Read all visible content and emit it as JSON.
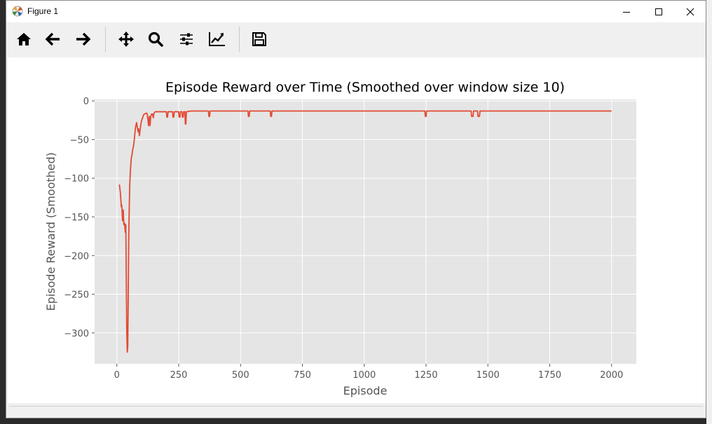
{
  "window": {
    "title": "Figure 1",
    "controls": {
      "minimize": "minimize-icon",
      "maximize": "maximize-icon",
      "close": "close-icon"
    }
  },
  "toolbar": {
    "items": [
      {
        "name": "home-button",
        "icon": "home-icon"
      },
      {
        "name": "back-button",
        "icon": "arrow-left-icon"
      },
      {
        "name": "forward-button",
        "icon": "arrow-right-icon"
      },
      {
        "name": "pan-button",
        "icon": "move-icon"
      },
      {
        "name": "zoom-button",
        "icon": "magnifier-icon"
      },
      {
        "name": "subplots-button",
        "icon": "sliders-icon"
      },
      {
        "name": "customize-button",
        "icon": "chart-line-icon"
      },
      {
        "name": "save-button",
        "icon": "floppy-disk-icon"
      }
    ]
  },
  "chart_data": {
    "type": "line",
    "title": "Episode Reward over Time (Smoothed over window size 10)",
    "xlabel": "Episode",
    "ylabel": "Episode Reward (Smoothed)",
    "xlim": [
      -90,
      2100
    ],
    "ylim": [
      -340,
      2
    ],
    "xticks": [
      0,
      250,
      500,
      750,
      1000,
      1250,
      1500,
      1750,
      2000
    ],
    "xtick_labels": [
      "0",
      "250",
      "500",
      "750",
      "1000",
      "1250",
      "1500",
      "1750",
      "2000"
    ],
    "yticks": [
      0,
      -50,
      -100,
      -150,
      -200,
      -250,
      -300
    ],
    "ytick_labels": [
      "0",
      "−50",
      "−100",
      "−150",
      "−200",
      "−250",
      "−300"
    ],
    "grid": true,
    "style": "ggplot",
    "background": "#e5e5e5",
    "line_color": "#e24a33",
    "series": [
      {
        "points": [
          [
            10,
            -108
          ],
          [
            14,
            -118
          ],
          [
            18,
            -137
          ],
          [
            20,
            -135
          ],
          [
            23,
            -155
          ],
          [
            26,
            -141
          ],
          [
            28,
            -160
          ],
          [
            31,
            -158
          ],
          [
            34,
            -170
          ],
          [
            36,
            -160
          ],
          [
            38,
            -230
          ],
          [
            40,
            -300
          ],
          [
            42,
            -325
          ],
          [
            44,
            -318
          ],
          [
            46,
            -250
          ],
          [
            48,
            -180
          ],
          [
            50,
            -140
          ],
          [
            52,
            -110
          ],
          [
            54,
            -95
          ],
          [
            56,
            -85
          ],
          [
            58,
            -75
          ],
          [
            61,
            -70
          ],
          [
            63,
            -65
          ],
          [
            66,
            -60
          ],
          [
            69,
            -55
          ],
          [
            72,
            -45
          ],
          [
            75,
            -35
          ],
          [
            78,
            -30
          ],
          [
            80,
            -28
          ],
          [
            83,
            -35
          ],
          [
            86,
            -40
          ],
          [
            88,
            -36
          ],
          [
            91,
            -45
          ],
          [
            94,
            -38
          ],
          [
            97,
            -30
          ],
          [
            100,
            -25
          ],
          [
            104,
            -22
          ],
          [
            108,
            -18
          ],
          [
            112,
            -17
          ],
          [
            117,
            -16
          ],
          [
            122,
            -16
          ],
          [
            126,
            -25
          ],
          [
            128,
            -32
          ],
          [
            131,
            -20
          ],
          [
            134,
            -32
          ],
          [
            137,
            -20
          ],
          [
            140,
            -17
          ],
          [
            144,
            -17
          ],
          [
            147,
            -22
          ],
          [
            150,
            -16
          ],
          [
            155,
            -14
          ],
          [
            165,
            -14
          ],
          [
            175,
            -14
          ],
          [
            195,
            -14
          ],
          [
            200,
            -14
          ],
          [
            202,
            -21
          ],
          [
            205,
            -21
          ],
          [
            207,
            -14
          ],
          [
            225,
            -14
          ],
          [
            227,
            -21
          ],
          [
            230,
            -21
          ],
          [
            232,
            -14
          ],
          [
            250,
            -14
          ],
          [
            252,
            -21
          ],
          [
            255,
            -21
          ],
          [
            257,
            -14
          ],
          [
            263,
            -14
          ],
          [
            265,
            -21
          ],
          [
            268,
            -21
          ],
          [
            270,
            -14
          ],
          [
            275,
            -14
          ],
          [
            277,
            -30
          ],
          [
            279,
            -30
          ],
          [
            281,
            -14
          ],
          [
            300,
            -13
          ],
          [
            370,
            -13
          ],
          [
            372,
            -20
          ],
          [
            375,
            -20
          ],
          [
            377,
            -13
          ],
          [
            530,
            -13
          ],
          [
            532,
            -20
          ],
          [
            535,
            -20
          ],
          [
            537,
            -13
          ],
          [
            620,
            -13
          ],
          [
            622,
            -20
          ],
          [
            625,
            -20
          ],
          [
            627,
            -13
          ],
          [
            1245,
            -13
          ],
          [
            1247,
            -20
          ],
          [
            1250,
            -20
          ],
          [
            1252,
            -13
          ],
          [
            1432,
            -13
          ],
          [
            1434,
            -20
          ],
          [
            1440,
            -20
          ],
          [
            1442,
            -13
          ],
          [
            1458,
            -13
          ],
          [
            1460,
            -20
          ],
          [
            1466,
            -20
          ],
          [
            1468,
            -13
          ],
          [
            2000,
            -13
          ]
        ]
      }
    ]
  }
}
